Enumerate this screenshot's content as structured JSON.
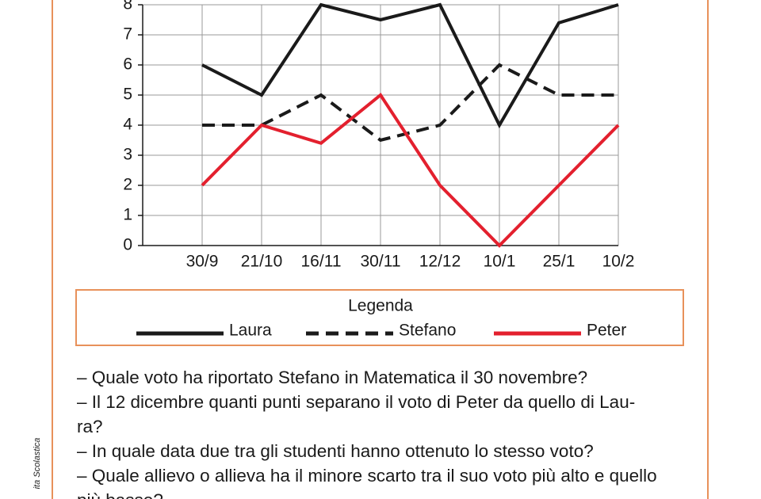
{
  "chart_data": {
    "type": "line",
    "legend_title": "Legenda",
    "categories": [
      "30/9",
      "21/10",
      "16/11",
      "30/11",
      "12/12",
      "10/1",
      "25/1",
      "10/2"
    ],
    "series": [
      {
        "name": "Laura",
        "color": "#1a1a1a",
        "style": "solid",
        "values": [
          6,
          5,
          8,
          7.5,
          8,
          4,
          7.4,
          8
        ]
      },
      {
        "name": "Stefano",
        "color": "#1a1a1a",
        "style": "dashed",
        "values": [
          4,
          4,
          5,
          3.5,
          4,
          6,
          5,
          5
        ]
      },
      {
        "name": "Peter",
        "color": "#e3202e",
        "style": "solid",
        "values": [
          2,
          4,
          3.4,
          5,
          2,
          0,
          2,
          4
        ]
      }
    ],
    "ylim": [
      0,
      8
    ],
    "yticks": [
      0,
      1,
      2,
      3,
      4,
      5,
      6,
      7,
      8
    ],
    "grid": true
  },
  "questions": [
    "– Quale voto ha riportato Stefano in Matematica il 30 novembre?",
    "– Il 12 dicembre quanti punti separano il voto di Peter da quello di Lau-",
    "ra?",
    "– In quale data due tra gli studenti hanno ottenuto lo stesso voto?",
    "– Quale allievo o allieva ha il minore scarto tra il suo voto più alto e quello",
    "più basso?"
  ],
  "side_text": "ita Scolastica"
}
